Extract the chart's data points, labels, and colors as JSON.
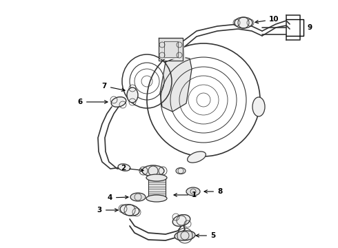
{
  "bg_color": "#ffffff",
  "line_color": "#333333",
  "text_color": "#000000",
  "figsize": [
    4.9,
    3.6
  ],
  "dpi": 100,
  "label_fontsize": 7.5,
  "lw_main": 1.0,
  "lw_thin": 0.6
}
